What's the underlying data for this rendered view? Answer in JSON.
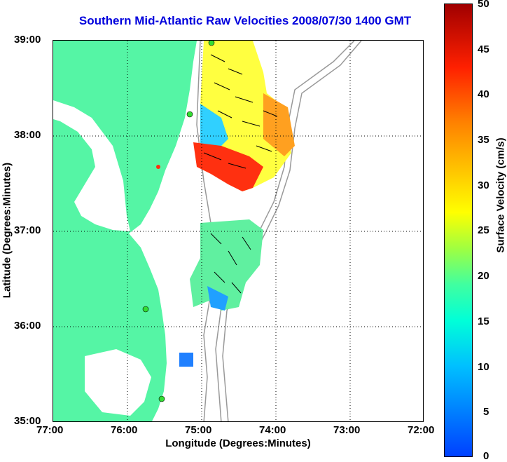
{
  "title": "Southern Mid-Atlantic Raw Velocities 2008/07/30 1400 GMT",
  "map": {
    "x_ticks": [
      "77:00",
      "76:00",
      "75:00",
      "74:00",
      "73:00",
      "72:00"
    ],
    "y_ticks": [
      "39:00",
      "38:00",
      "37:00",
      "36:00",
      "35:00"
    ],
    "xlabel": "Longitude (Degrees:Minutes)",
    "ylabel": "Latitude (Degrees:Minutes)",
    "lon_range": [
      -77,
      -72
    ],
    "lat_range": [
      35,
      39
    ],
    "grid": "dotted"
  },
  "colorbar": {
    "title": "Surface Velocity (cm/s)",
    "ticks": [
      "50",
      "45",
      "40",
      "35",
      "30",
      "25",
      "20",
      "15",
      "10",
      "5",
      "0"
    ],
    "min": 0,
    "max": 50
  },
  "colors": {
    "land": "#55f5a5",
    "title": "#0000dd",
    "station": "#33dd33"
  }
}
